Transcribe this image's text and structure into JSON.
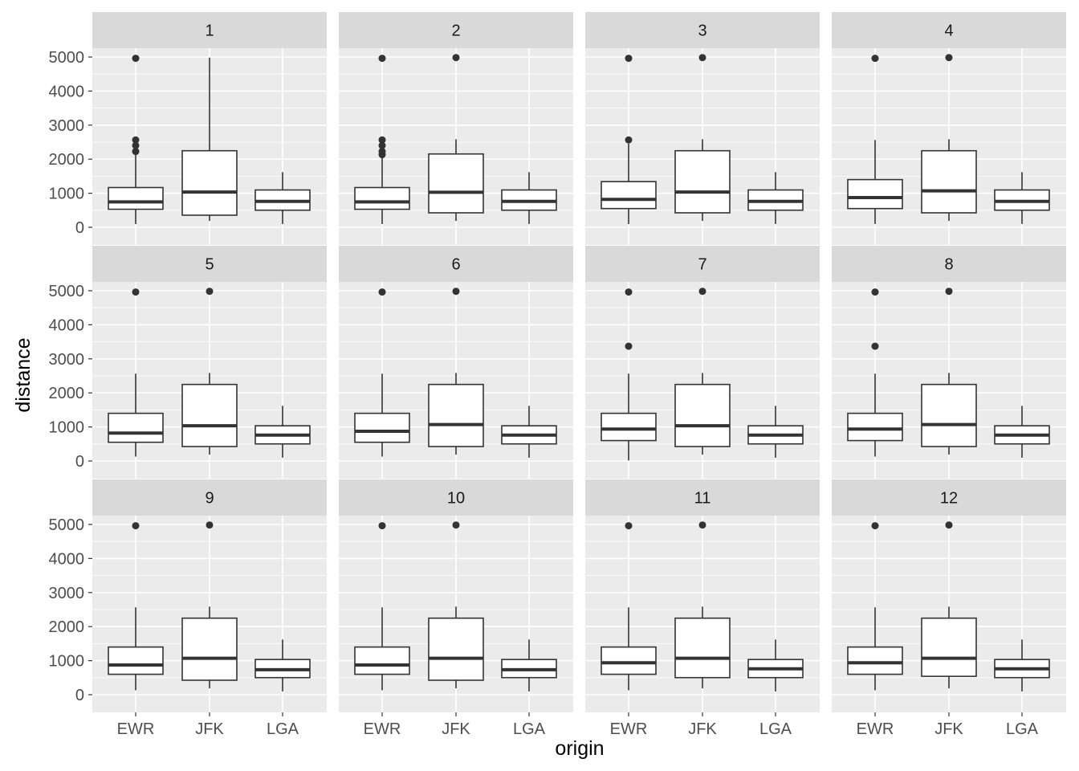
{
  "chart_data": {
    "type": "boxplot",
    "facet_variable": "month",
    "xlabel": "origin",
    "ylabel": "distance",
    "categories": [
      "EWR",
      "JFK",
      "LGA"
    ],
    "ylim": [
      0,
      5000
    ],
    "yticks": [
      0,
      1000,
      2000,
      3000,
      4000,
      5000
    ],
    "grid": true,
    "facets": [
      {
        "label": "1",
        "boxes": [
          {
            "category": "EWR",
            "lower_whisker": 94,
            "q1": 529,
            "median": 746,
            "q3": 1167,
            "upper_whisker": 2133,
            "outliers": [
              2227,
              2402,
              2565,
              4963
            ]
          },
          {
            "category": "JFK",
            "lower_whisker": 187,
            "q1": 355,
            "median": 1035,
            "q3": 2248,
            "upper_whisker": 4983,
            "outliers": []
          },
          {
            "category": "LGA",
            "lower_whisker": 96,
            "q1": 502,
            "median": 762,
            "q3": 1096,
            "upper_whisker": 1620,
            "outliers": []
          }
        ]
      },
      {
        "label": "2",
        "boxes": [
          {
            "category": "EWR",
            "lower_whisker": 94,
            "q1": 529,
            "median": 746,
            "q3": 1167,
            "upper_whisker": 2133,
            "outliers": [
              2133,
              2227,
              2402,
              2565,
              4963
            ]
          },
          {
            "category": "JFK",
            "lower_whisker": 187,
            "q1": 425,
            "median": 1028,
            "q3": 2153,
            "upper_whisker": 2586,
            "outliers": [
              4983
            ]
          },
          {
            "category": "LGA",
            "lower_whisker": 96,
            "q1": 502,
            "median": 762,
            "q3": 1096,
            "upper_whisker": 1620,
            "outliers": []
          }
        ]
      },
      {
        "label": "3",
        "boxes": [
          {
            "category": "EWR",
            "lower_whisker": 94,
            "q1": 550,
            "median": 820,
            "q3": 1341,
            "upper_whisker": 2454,
            "outliers": [
              2565,
              4963
            ]
          },
          {
            "category": "JFK",
            "lower_whisker": 187,
            "q1": 425,
            "median": 1035,
            "q3": 2248,
            "upper_whisker": 2586,
            "outliers": [
              4983
            ]
          },
          {
            "category": "LGA",
            "lower_whisker": 96,
            "q1": 502,
            "median": 762,
            "q3": 1096,
            "upper_whisker": 1620,
            "outliers": []
          }
        ]
      },
      {
        "label": "4",
        "boxes": [
          {
            "category": "EWR",
            "lower_whisker": 94,
            "q1": 550,
            "median": 872,
            "q3": 1400,
            "upper_whisker": 2565,
            "outliers": [
              4963
            ]
          },
          {
            "category": "JFK",
            "lower_whisker": 187,
            "q1": 425,
            "median": 1069,
            "q3": 2248,
            "upper_whisker": 2586,
            "outliers": [
              4983
            ]
          },
          {
            "category": "LGA",
            "lower_whisker": 96,
            "q1": 502,
            "median": 762,
            "q3": 1096,
            "upper_whisker": 1620,
            "outliers": []
          }
        ]
      },
      {
        "label": "5",
        "boxes": [
          {
            "category": "EWR",
            "lower_whisker": 130,
            "q1": 550,
            "median": 820,
            "q3": 1400,
            "upper_whisker": 2565,
            "outliers": [
              4963
            ]
          },
          {
            "category": "JFK",
            "lower_whisker": 187,
            "q1": 425,
            "median": 1035,
            "q3": 2248,
            "upper_whisker": 2586,
            "outliers": [
              4983
            ]
          },
          {
            "category": "LGA",
            "lower_whisker": 96,
            "q1": 502,
            "median": 762,
            "q3": 1034,
            "upper_whisker": 1620,
            "outliers": []
          }
        ]
      },
      {
        "label": "6",
        "boxes": [
          {
            "category": "EWR",
            "lower_whisker": 130,
            "q1": 550,
            "median": 872,
            "q3": 1400,
            "upper_whisker": 2565,
            "outliers": [
              4963
            ]
          },
          {
            "category": "JFK",
            "lower_whisker": 187,
            "q1": 425,
            "median": 1069,
            "q3": 2248,
            "upper_whisker": 2586,
            "outliers": [
              4983
            ]
          },
          {
            "category": "LGA",
            "lower_whisker": 96,
            "q1": 502,
            "median": 762,
            "q3": 1034,
            "upper_whisker": 1620,
            "outliers": []
          }
        ]
      },
      {
        "label": "7",
        "boxes": [
          {
            "category": "EWR",
            "lower_whisker": 17,
            "q1": 600,
            "median": 937,
            "q3": 1400,
            "upper_whisker": 2565,
            "outliers": [
              3370,
              4963
            ]
          },
          {
            "category": "JFK",
            "lower_whisker": 187,
            "q1": 425,
            "median": 1035,
            "q3": 2248,
            "upper_whisker": 2586,
            "outliers": [
              4983
            ]
          },
          {
            "category": "LGA",
            "lower_whisker": 96,
            "q1": 502,
            "median": 762,
            "q3": 1034,
            "upper_whisker": 1620,
            "outliers": []
          }
        ]
      },
      {
        "label": "8",
        "boxes": [
          {
            "category": "EWR",
            "lower_whisker": 130,
            "q1": 600,
            "median": 937,
            "q3": 1400,
            "upper_whisker": 2565,
            "outliers": [
              3370,
              4963
            ]
          },
          {
            "category": "JFK",
            "lower_whisker": 187,
            "q1": 425,
            "median": 1069,
            "q3": 2248,
            "upper_whisker": 2586,
            "outliers": [
              4983
            ]
          },
          {
            "category": "LGA",
            "lower_whisker": 96,
            "q1": 502,
            "median": 762,
            "q3": 1034,
            "upper_whisker": 1620,
            "outliers": []
          }
        ]
      },
      {
        "label": "9",
        "boxes": [
          {
            "category": "EWR",
            "lower_whisker": 130,
            "q1": 600,
            "median": 872,
            "q3": 1400,
            "upper_whisker": 2565,
            "outliers": [
              4963
            ]
          },
          {
            "category": "JFK",
            "lower_whisker": 187,
            "q1": 425,
            "median": 1069,
            "q3": 2248,
            "upper_whisker": 2586,
            "outliers": [
              4983
            ]
          },
          {
            "category": "LGA",
            "lower_whisker": 96,
            "q1": 502,
            "median": 733,
            "q3": 1034,
            "upper_whisker": 1620,
            "outliers": []
          }
        ]
      },
      {
        "label": "10",
        "boxes": [
          {
            "category": "EWR",
            "lower_whisker": 130,
            "q1": 600,
            "median": 872,
            "q3": 1400,
            "upper_whisker": 2565,
            "outliers": [
              4963
            ]
          },
          {
            "category": "JFK",
            "lower_whisker": 187,
            "q1": 425,
            "median": 1069,
            "q3": 2248,
            "upper_whisker": 2586,
            "outliers": [
              4983
            ]
          },
          {
            "category": "LGA",
            "lower_whisker": 96,
            "q1": 502,
            "median": 733,
            "q3": 1034,
            "upper_whisker": 1620,
            "outliers": []
          }
        ]
      },
      {
        "label": "11",
        "boxes": [
          {
            "category": "EWR",
            "lower_whisker": 130,
            "q1": 600,
            "median": 937,
            "q3": 1400,
            "upper_whisker": 2565,
            "outliers": [
              4963
            ]
          },
          {
            "category": "JFK",
            "lower_whisker": 187,
            "q1": 502,
            "median": 1069,
            "q3": 2248,
            "upper_whisker": 2586,
            "outliers": [
              4983
            ]
          },
          {
            "category": "LGA",
            "lower_whisker": 96,
            "q1": 502,
            "median": 762,
            "q3": 1034,
            "upper_whisker": 1620,
            "outliers": []
          }
        ]
      },
      {
        "label": "12",
        "boxes": [
          {
            "category": "EWR",
            "lower_whisker": 130,
            "q1": 600,
            "median": 937,
            "q3": 1400,
            "upper_whisker": 2565,
            "outliers": [
              4963
            ]
          },
          {
            "category": "JFK",
            "lower_whisker": 187,
            "q1": 540,
            "median": 1069,
            "q3": 2248,
            "upper_whisker": 2586,
            "outliers": [
              4983
            ]
          },
          {
            "category": "LGA",
            "lower_whisker": 96,
            "q1": 502,
            "median": 762,
            "q3": 1034,
            "upper_whisker": 1620,
            "outliers": []
          }
        ]
      }
    ]
  }
}
